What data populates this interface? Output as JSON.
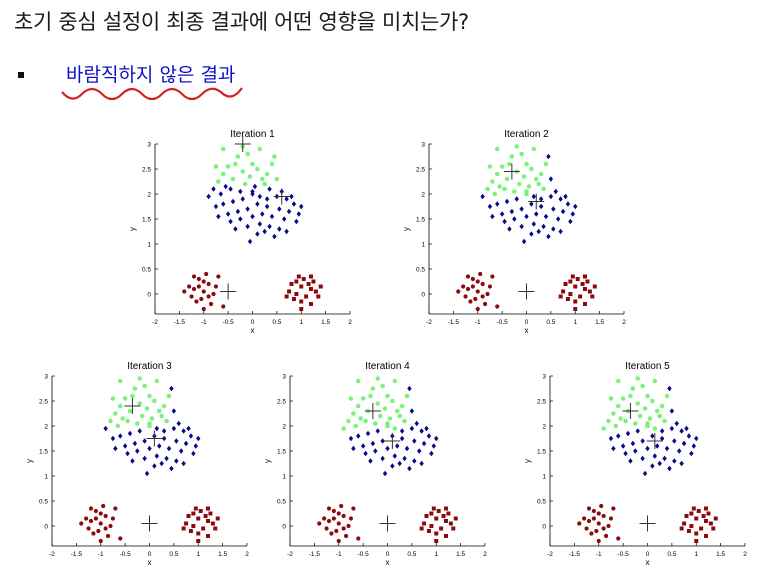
{
  "page": {
    "title": "초기 중심 설정이 최종 결과에 어떤 영향을 미치는가?",
    "bullet": "바람직하지 않은 결과"
  },
  "colors": {
    "bullet_text": "#1010c8",
    "underline": "#d42020",
    "cluster_green": "#7cf27c",
    "cluster_blue": "#0a0a8c",
    "cluster_red": "#8c0a0a",
    "centroid": "#333333"
  },
  "chart_data": [
    {
      "type": "scatter",
      "title": "Iteration 1",
      "xlabel": "x",
      "ylabel": "y",
      "xlim": [
        -2,
        2
      ],
      "ylim": [
        0,
        3
      ],
      "xticks": [
        "-2",
        "-1.5",
        "-1",
        "-0.5",
        "0",
        "0.5",
        "1",
        "1.5",
        "2"
      ],
      "yticks": [
        "0",
        "0.5",
        "1",
        "1.5",
        "2",
        "2.5",
        "3"
      ],
      "centroids": [
        [
          -0.2,
          3.0
        ],
        [
          0.6,
          1.95
        ],
        [
          -0.5,
          0.05
        ]
      ],
      "assignment": {
        "green_max_y": 2.2,
        "green_upper_cluster": true
      },
      "grid": false
    },
    {
      "type": "scatter",
      "title": "Iteration 2",
      "xlabel": "x",
      "ylabel": "y",
      "xlim": [
        -2,
        2
      ],
      "ylim": [
        0,
        3
      ],
      "xticks": [
        "-2",
        "-1.5",
        "-1",
        "-0.5",
        "0",
        "0.5",
        "1",
        "1.5",
        "2"
      ],
      "yticks": [
        "0",
        "0.5",
        "1",
        "1.5",
        "2",
        "2.5",
        "3"
      ],
      "centroids": [
        [
          -0.3,
          2.45
        ],
        [
          0.2,
          1.85
        ],
        [
          0.0,
          0.05
        ]
      ],
      "assignment": {
        "green_min_y": 2.0
      },
      "grid": false
    },
    {
      "type": "scatter",
      "title": "Iteration 3",
      "xlabel": "x",
      "ylabel": "y",
      "xlim": [
        -2,
        2
      ],
      "ylim": [
        0,
        3
      ],
      "xticks": [
        "-2",
        "-1.5",
        "-1",
        "-0.5",
        "0",
        "0.5",
        "1",
        "1.5",
        "2"
      ],
      "yticks": [
        "0",
        "0.5",
        "1",
        "1.5",
        "2",
        "2.5",
        "3"
      ],
      "centroids": [
        [
          -0.35,
          2.4
        ],
        [
          0.1,
          1.75
        ],
        [
          0.0,
          0.05
        ]
      ],
      "assignment": {
        "green_min_y": 2.0
      },
      "grid": false
    },
    {
      "type": "scatter",
      "title": "Iteration 4",
      "xlabel": "x",
      "ylabel": "y",
      "xlim": [
        -2,
        2
      ],
      "ylim": [
        0,
        3
      ],
      "xticks": [
        "-2",
        "-1.5",
        "-1",
        "-0.5",
        "0",
        "0.5",
        "1",
        "1.5",
        "2"
      ],
      "yticks": [
        "0",
        "0.5",
        "1",
        "1.5",
        "2",
        "2.5",
        "3"
      ],
      "centroids": [
        [
          -0.3,
          2.3
        ],
        [
          0.1,
          1.7
        ],
        [
          0.0,
          0.05
        ]
      ],
      "assignment": {
        "green_min_y": 1.95
      },
      "grid": false
    },
    {
      "type": "scatter",
      "title": "Iteration 5",
      "xlabel": "x",
      "ylabel": "y",
      "xlim": [
        -2,
        2
      ],
      "ylim": [
        0,
        3
      ],
      "xticks": [
        "-2",
        "-1.5",
        "-1",
        "-0.5",
        "0",
        "0.5",
        "1",
        "1.5",
        "2"
      ],
      "yticks": [
        "0",
        "0.5",
        "1",
        "1.5",
        "2",
        "2.5",
        "3"
      ],
      "centroids": [
        [
          -0.35,
          2.3
        ],
        [
          0.15,
          1.7
        ],
        [
          0.0,
          0.05
        ]
      ],
      "assignment": {
        "green_min_y": 1.95
      },
      "grid": false
    }
  ],
  "points": {
    "upper": [
      [
        -0.3,
        2.75
      ],
      [
        -0.1,
        2.8
      ],
      [
        0.0,
        2.6
      ],
      [
        -0.5,
        2.55
      ],
      [
        -0.6,
        2.4
      ],
      [
        -0.2,
        2.45
      ],
      [
        0.1,
        2.5
      ],
      [
        0.2,
        2.3
      ],
      [
        -0.4,
        2.3
      ],
      [
        -0.7,
        2.25
      ],
      [
        -0.15,
        2.2
      ],
      [
        0.05,
        2.15
      ],
      [
        0.3,
        2.4
      ],
      [
        -0.45,
        2.1
      ],
      [
        -0.25,
        2.05
      ],
      [
        0.4,
        2.6
      ],
      [
        -0.8,
        2.1
      ],
      [
        0.15,
        2.9
      ],
      [
        -0.05,
        2.35
      ],
      [
        0.25,
        2.2
      ],
      [
        -0.55,
        2.15
      ],
      [
        -0.35,
        2.6
      ],
      [
        0.5,
        2.3
      ],
      [
        -0.9,
        1.95
      ],
      [
        0.0,
        2.05
      ],
      [
        -0.6,
        2.9
      ],
      [
        0.35,
        2.1
      ],
      [
        -0.2,
        2.95
      ],
      [
        0.45,
        2.75
      ],
      [
        -0.75,
        2.55
      ],
      [
        0.0,
        2.0
      ],
      [
        0.15,
        1.95
      ],
      [
        0.3,
        1.9
      ],
      [
        0.5,
        1.95
      ],
      [
        0.7,
        1.9
      ],
      [
        0.85,
        1.8
      ],
      [
        -0.2,
        1.9
      ],
      [
        -0.4,
        1.85
      ],
      [
        -0.6,
        1.8
      ],
      [
        -0.75,
        1.75
      ],
      [
        0.1,
        1.8
      ],
      [
        0.3,
        1.75
      ],
      [
        0.55,
        1.7
      ],
      [
        0.75,
        1.65
      ],
      [
        0.95,
        1.6
      ],
      [
        -0.1,
        1.7
      ],
      [
        -0.3,
        1.65
      ],
      [
        -0.5,
        1.6
      ],
      [
        -0.7,
        1.55
      ],
      [
        0.2,
        1.6
      ],
      [
        0.4,
        1.55
      ],
      [
        0.65,
        1.5
      ],
      [
        0.9,
        1.45
      ],
      [
        0.0,
        1.55
      ],
      [
        -0.25,
        1.5
      ],
      [
        -0.45,
        1.45
      ],
      [
        0.15,
        1.4
      ],
      [
        0.35,
        1.35
      ],
      [
        0.55,
        1.3
      ],
      [
        -0.1,
        1.35
      ],
      [
        0.25,
        1.25
      ],
      [
        0.45,
        1.15
      ],
      [
        -0.35,
        1.3
      ],
      [
        0.1,
        1.2
      ],
      [
        0.7,
        1.25
      ],
      [
        1.0,
        1.75
      ],
      [
        -0.05,
        1.05
      ],
      [
        0.8,
        1.95
      ],
      [
        0.6,
        2.05
      ],
      [
        -0.65,
        2.0
      ]
    ],
    "left": [
      [
        -1.2,
        0.1
      ],
      [
        -1.0,
        0.05
      ],
      [
        -0.9,
        0.2
      ],
      [
        -1.1,
        0.3
      ],
      [
        -1.3,
        0.15
      ],
      [
        -0.8,
        0.0
      ],
      [
        -1.05,
        -0.1
      ],
      [
        -1.25,
        -0.05
      ],
      [
        -0.95,
        0.4
      ],
      [
        -1.15,
        -0.15
      ],
      [
        -0.85,
        -0.2
      ],
      [
        -1.4,
        0.05
      ],
      [
        -1.0,
        0.25
      ],
      [
        -0.75,
        0.15
      ],
      [
        -1.1,
        0.15
      ],
      [
        -0.9,
        -0.05
      ],
      [
        -0.7,
        0.35
      ],
      [
        -1.2,
        0.35
      ],
      [
        -0.6,
        -0.25
      ],
      [
        -1.0,
        -0.3
      ]
    ],
    "right": [
      [
        0.8,
        0.2
      ],
      [
        1.0,
        0.15
      ],
      [
        1.2,
        0.1
      ],
      [
        0.9,
        0.0
      ],
      [
        1.1,
        -0.05
      ],
      [
        1.3,
        0.05
      ],
      [
        0.75,
        0.05
      ],
      [
        1.0,
        -0.15
      ],
      [
        1.2,
        -0.2
      ],
      [
        0.85,
        -0.1
      ],
      [
        1.05,
        0.3
      ],
      [
        1.25,
        0.25
      ],
      [
        0.95,
        0.35
      ],
      [
        1.15,
        0.2
      ],
      [
        1.35,
        -0.05
      ],
      [
        0.7,
        -0.05
      ],
      [
        1.0,
        -0.3
      ],
      [
        1.2,
        0.35
      ],
      [
        1.4,
        0.15
      ],
      [
        0.9,
        0.25
      ]
    ]
  }
}
